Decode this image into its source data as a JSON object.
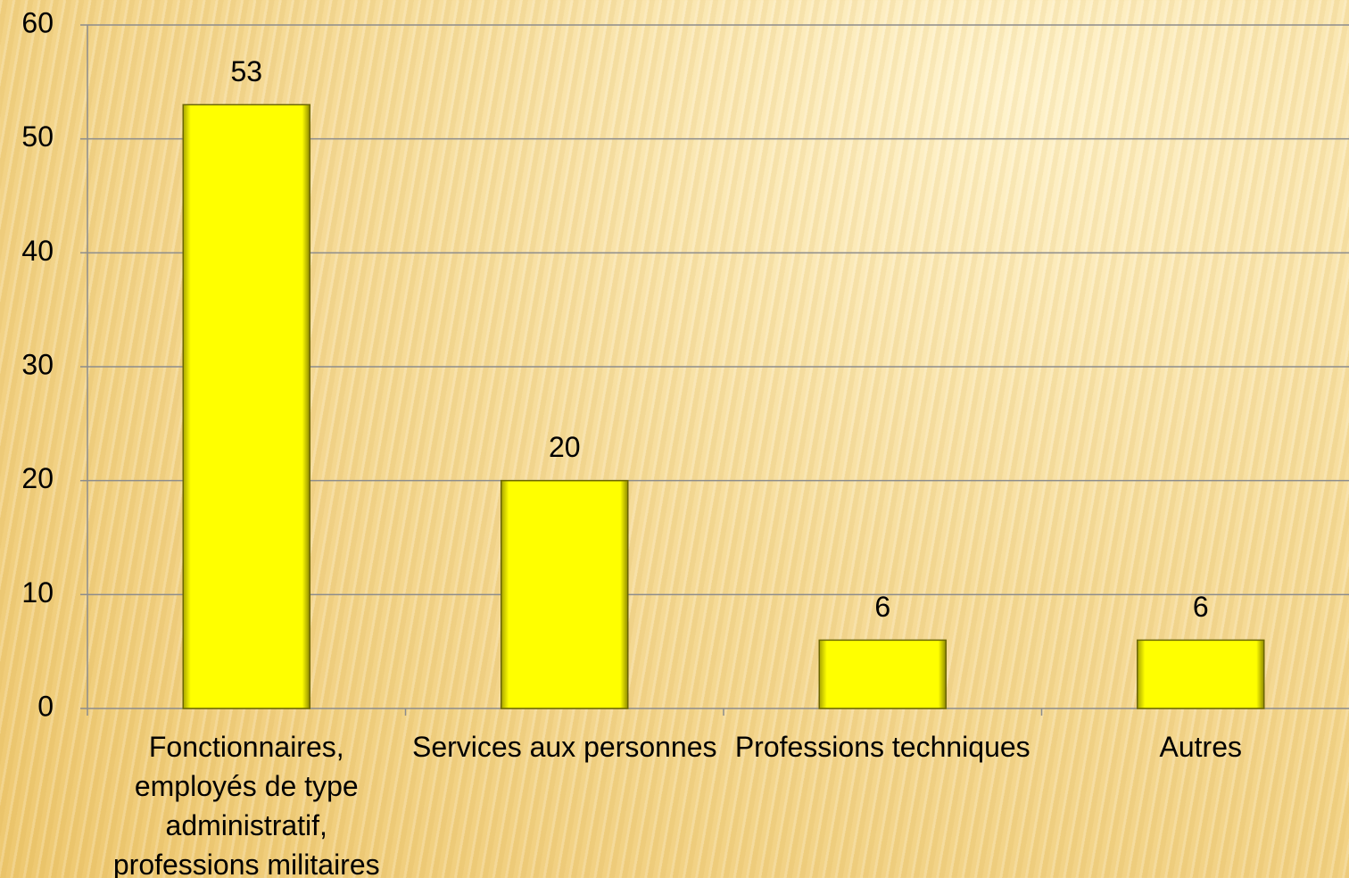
{
  "chart_data": {
    "type": "bar",
    "categories": [
      "Fonctionnaires, employés de type administratif, professions militaires",
      "Services aux personnes",
      "Professions techniques",
      "Autres"
    ],
    "values": [
      53,
      20,
      6,
      6
    ],
    "color": "#ffff00",
    "ylim": [
      0,
      60
    ],
    "yticks": [
      0,
      10,
      20,
      30,
      40,
      50,
      60
    ],
    "grid": true
  }
}
